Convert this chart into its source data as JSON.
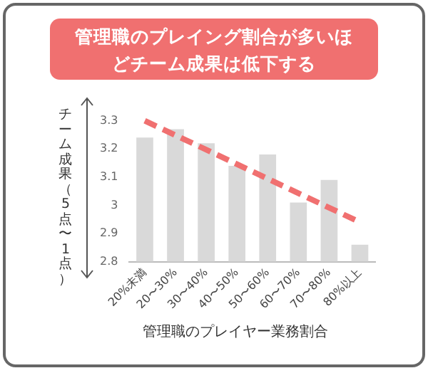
{
  "chart_data": {
    "type": "bar",
    "title": "管理職のプレイング割合が多いほどチーム成果は低下する",
    "xlabel": "管理職のプレイヤー業務割合",
    "ylabel": "チーム成果（5点〜1点）",
    "categories": [
      "20%未満",
      "20〜30%",
      "30〜40%",
      "40〜50%",
      "50〜60%",
      "60〜70%",
      "70〜80%",
      "80%以上"
    ],
    "series": [
      {
        "color": "#d9d9d9",
        "values": [
          3.24,
          3.27,
          3.22,
          3.14,
          3.18,
          3.01,
          3.09,
          2.86
        ]
      },
      {
        "type": "line",
        "color": "#f07070",
        "line_style": "dashed",
        "marker": "none",
        "x": [
          "20%未満",
          "80%以上"
        ],
        "values": [
          3.3,
          2.94
        ]
      }
    ],
    "ylim": [
      2.8,
      3.3
    ],
    "yticks": [
      2.8,
      2.9,
      3,
      3.1,
      3.2,
      3.3
    ],
    "grid": false,
    "legend": false
  }
}
